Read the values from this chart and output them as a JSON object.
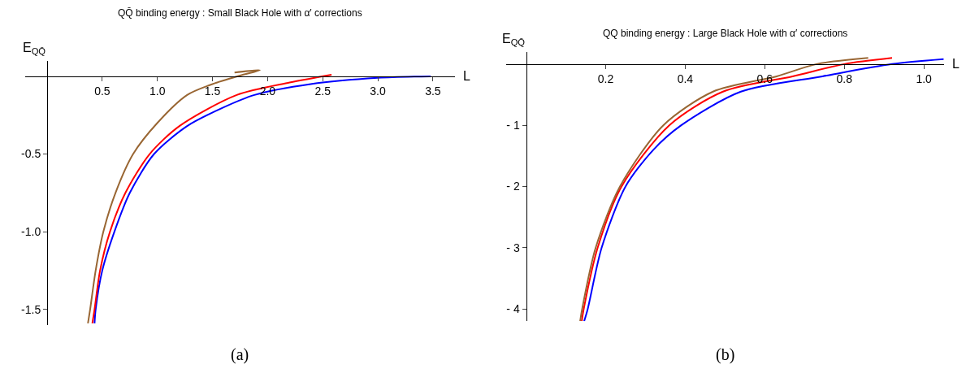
{
  "chart_data": [
    {
      "type": "line",
      "title": "QQ̄ binding energy : Small Black Hole with α′ corrections",
      "xlabel": "L",
      "ylabel": "E$_{QQ̄}$",
      "annotations": [
        "(a)"
      ],
      "xlim": [
        -0.2,
        3.7
      ],
      "ylim": [
        -1.6,
        0.1
      ],
      "xticks": [
        0.5,
        {
          "value": 1,
          "label": "1.0"
        },
        1.5,
        {
          "value": 2,
          "label": "2.0"
        },
        2.5,
        {
          "value": 3,
          "label": "3.0"
        },
        3.5
      ],
      "yticks": [
        -1.5,
        {
          "value": -1,
          "label": "-1.0"
        },
        -0.5
      ],
      "line_style": "solid",
      "marker": "none",
      "series": [
        {
          "color": "#0000ff",
          "x": [
            0.43,
            0.44,
            0.5,
            0.61,
            0.75,
            0.97,
            1.27,
            1.6,
            1.88,
            2.39,
            3.0,
            3.48
          ],
          "values": [
            -1.59,
            -1.5,
            -1.25,
            -1.0,
            -0.75,
            -0.5,
            -0.32,
            -0.2,
            -0.12,
            -0.05,
            -0.01,
            0
          ]
        },
        {
          "color": "#ff0000",
          "x": [
            0.41,
            0.43,
            0.48,
            0.57,
            0.71,
            0.93,
            1.2,
            1.72,
            2.2,
            2.58
          ],
          "values": [
            -1.59,
            -1.5,
            -1.25,
            -1.0,
            -0.75,
            -0.5,
            -0.32,
            -0.12,
            -0.04,
            0.01
          ]
        },
        {
          "color": "#996633",
          "x": [
            0.37,
            0.39,
            0.44,
            0.51,
            0.62,
            0.78,
            1.0,
            1.27,
            1.5,
            1.75,
            1.93,
            1.7
          ],
          "values": [
            -1.59,
            -1.5,
            -1.25,
            -1.0,
            -0.75,
            -0.5,
            -0.3,
            -0.12,
            -0.05,
            0.005,
            0.04,
            0.025
          ]
        }
      ]
    },
    {
      "type": "line",
      "title": "QQ binding energy : Large Black Hole with α′ corrections",
      "xlabel": "L",
      "ylabel": "E$_{QQ̄}$",
      "annotations": [
        "(b)"
      ],
      "xlim": [
        -0.05,
        1.05
      ],
      "ylim": [
        -4.2,
        0.2
      ],
      "xticks": [
        0.2,
        0.4,
        0.6,
        0.8,
        {
          "value": 1,
          "label": "1.0"
        }
      ],
      "yticks": [
        {
          "value": -4,
          "label": "- 4"
        },
        {
          "value": -3,
          "label": "- 3"
        },
        {
          "value": -2,
          "label": "- 2"
        },
        {
          "value": -1,
          "label": "- 1"
        }
      ],
      "line_style": "solid",
      "marker": "none",
      "series": [
        {
          "color": "#0000ff",
          "x": [
            0.146,
            0.155,
            0.19,
            0.25,
            0.32,
            0.39,
            0.54,
            0.745,
            0.92,
            1.05
          ],
          "values": [
            -4.2,
            -4,
            -3,
            -2,
            -1.4,
            -1,
            -0.45,
            -0.2,
            0,
            0.08
          ]
        },
        {
          "color": "#ff0000",
          "x": [
            0.14,
            0.145,
            0.18,
            0.24,
            0.36,
            0.495,
            0.67,
            0.8,
            0.92
          ],
          "values": [
            -4.2,
            -4,
            -3,
            -2,
            -1,
            -0.45,
            -0.2,
            0,
            0.1
          ]
        },
        {
          "color": "#996633",
          "x": [
            0.136,
            0.141,
            0.175,
            0.236,
            0.345,
            0.47,
            0.63,
            0.73,
            0.86
          ],
          "values": [
            -4.2,
            -4,
            -3,
            -2,
            -1,
            -0.45,
            -0.2,
            0,
            0.1
          ]
        }
      ]
    }
  ]
}
